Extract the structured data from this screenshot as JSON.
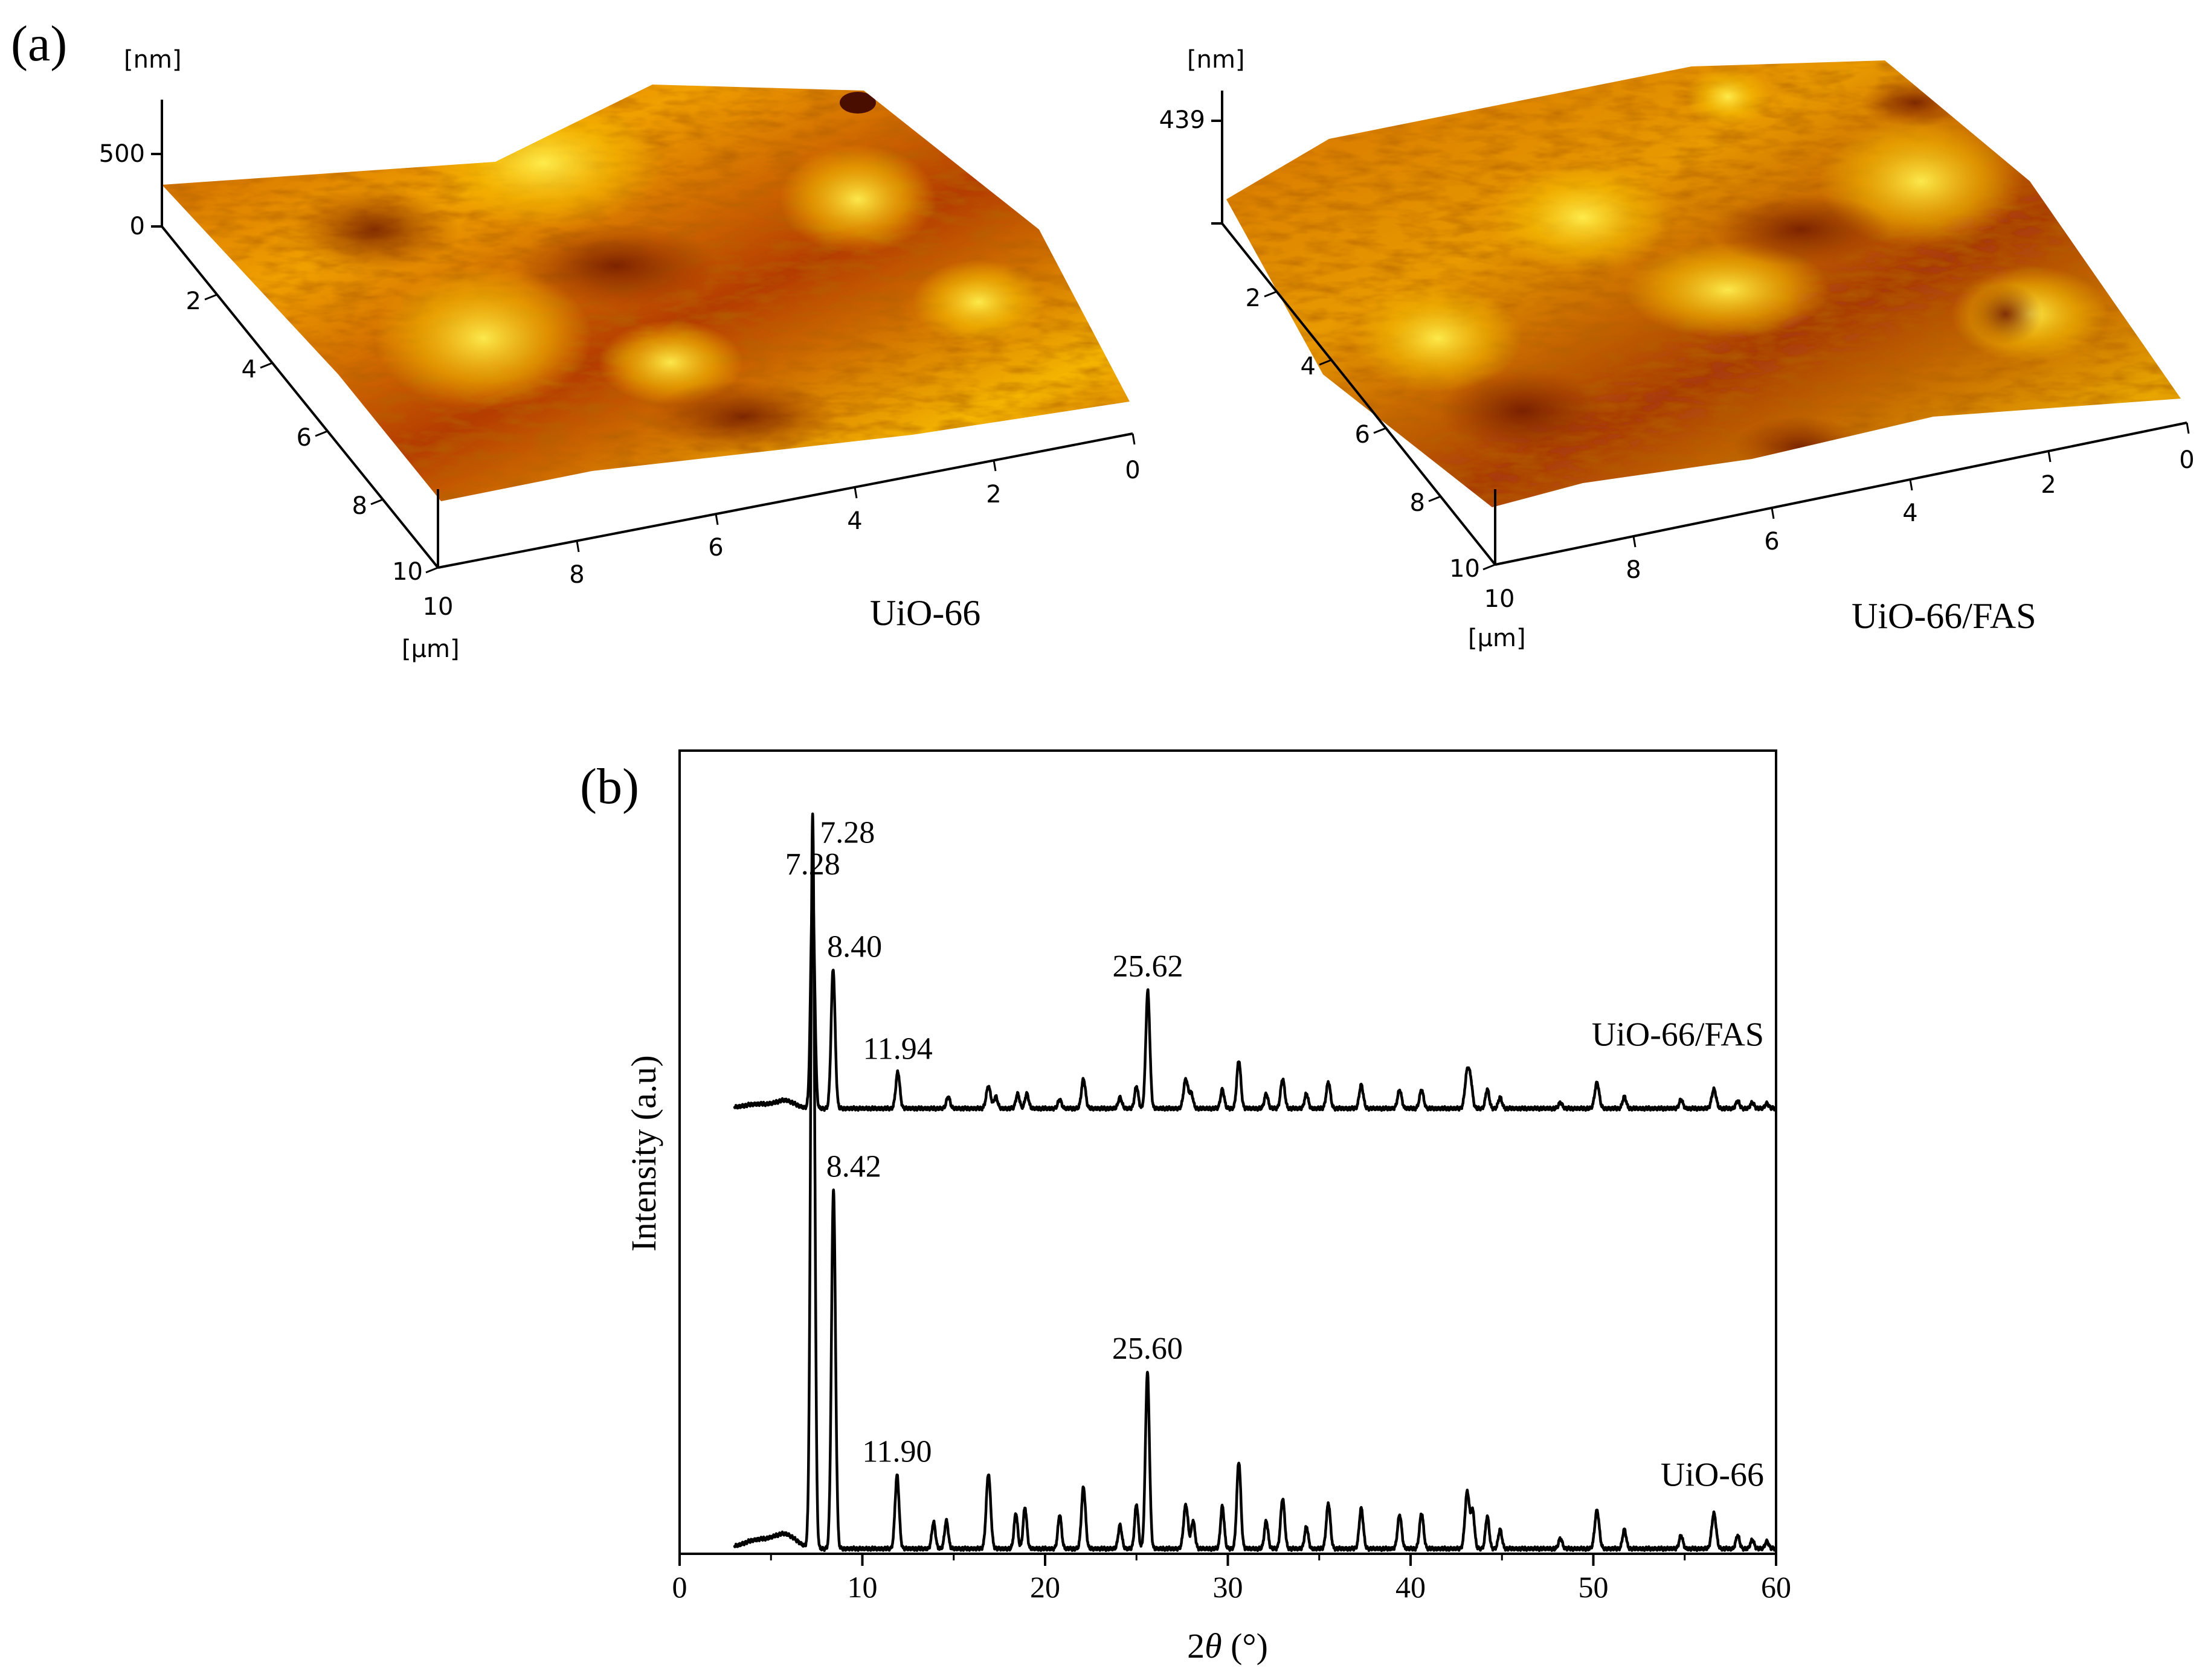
{
  "panel_a": {
    "label": "(a)",
    "left": {
      "sample": "UiO-66",
      "z_unit": "[nm]",
      "z_ticks": [
        "500",
        "0"
      ],
      "xy_unit": "[μm]",
      "side_ticks": [
        "2",
        "4",
        "6",
        "8",
        "10"
      ],
      "front_ticks": [
        "10",
        "8",
        "6",
        "4",
        "2",
        "0"
      ]
    },
    "right": {
      "sample": "UiO-66/FAS",
      "z_unit": "[nm]",
      "z_ticks": [
        "439"
      ],
      "xy_unit": "[μm]",
      "side_ticks": [
        "2",
        "4",
        "6",
        "8",
        "10"
      ],
      "front_ticks": [
        "10",
        "8",
        "6",
        "4",
        "2",
        "0"
      ]
    },
    "colors": {
      "dark": "#7a1e00",
      "mid": "#d86a00",
      "light": "#f4b400",
      "bright": "#ffe640"
    }
  },
  "chart_data": {
    "type": "line",
    "panel_label": "(b)",
    "xlabel_pre": "2",
    "xlabel_theta": "θ",
    "xlabel_post": " (°)",
    "ylabel": "Intensity (a.u)",
    "xlim": [
      0,
      60
    ],
    "ylim": [
      0,
      100
    ],
    "xticks": [
      0,
      10,
      20,
      30,
      40,
      50,
      60
    ],
    "line_color": "#000000",
    "series": [
      {
        "name": "UiO-66/FAS",
        "baseline": 60,
        "peaks": [
          [
            4.3,
            0.6,
            0.8
          ],
          [
            5.8,
            1.0,
            0.5
          ],
          [
            7.28,
            30.0,
            0.11
          ],
          [
            8.4,
            19.0,
            0.11
          ],
          [
            11.94,
            5.0,
            0.11
          ],
          [
            14.7,
            1.6,
            0.1
          ],
          [
            16.9,
            3.0,
            0.12
          ],
          [
            17.3,
            1.6,
            0.1
          ],
          [
            18.5,
            2.0,
            0.1
          ],
          [
            19.0,
            2.0,
            0.1
          ],
          [
            20.8,
            1.2,
            0.1
          ],
          [
            22.1,
            4.0,
            0.11
          ],
          [
            24.1,
            1.5,
            0.1
          ],
          [
            25.0,
            3.0,
            0.1
          ],
          [
            25.62,
            16.0,
            0.11
          ],
          [
            27.7,
            4.0,
            0.12
          ],
          [
            28.0,
            2.0,
            0.1
          ],
          [
            29.7,
            2.6,
            0.1
          ],
          [
            30.6,
            6.5,
            0.11
          ],
          [
            32.1,
            2.0,
            0.1
          ],
          [
            33.0,
            4.0,
            0.11
          ],
          [
            34.3,
            2.0,
            0.1
          ],
          [
            35.5,
            3.6,
            0.11
          ],
          [
            37.3,
            3.2,
            0.11
          ],
          [
            39.4,
            2.5,
            0.11
          ],
          [
            40.6,
            2.5,
            0.11
          ],
          [
            43.1,
            5.0,
            0.12
          ],
          [
            43.3,
            3.0,
            0.1
          ],
          [
            44.2,
            2.6,
            0.1
          ],
          [
            44.9,
            1.5,
            0.1
          ],
          [
            48.2,
            0.8,
            0.1
          ],
          [
            50.2,
            3.5,
            0.12
          ],
          [
            51.7,
            1.6,
            0.1
          ],
          [
            54.8,
            1.2,
            0.1
          ],
          [
            56.6,
            2.6,
            0.12
          ],
          [
            57.9,
            1.0,
            0.1
          ],
          [
            58.7,
            0.8,
            0.1
          ],
          [
            59.5,
            0.7,
            0.1
          ]
        ],
        "labels": [
          {
            "x": 7.28,
            "text": "7.28"
          },
          {
            "x": 8.4,
            "text": "8.40"
          },
          {
            "x": 11.94,
            "text": "11.94"
          },
          {
            "x": 25.62,
            "text": "25.62"
          }
        ]
      },
      {
        "name": "UiO-66",
        "baseline": 0,
        "peaks": [
          [
            4.3,
            1.2,
            0.8
          ],
          [
            5.8,
            1.8,
            0.6
          ],
          [
            7.28,
            100.0,
            0.11
          ],
          [
            8.42,
            49.0,
            0.11
          ],
          [
            11.9,
            10.0,
            0.11
          ],
          [
            13.9,
            3.6,
            0.1
          ],
          [
            14.6,
            3.8,
            0.1
          ],
          [
            16.9,
            10.2,
            0.12
          ],
          [
            18.4,
            4.8,
            0.1
          ],
          [
            18.9,
            5.6,
            0.1
          ],
          [
            20.8,
            4.6,
            0.1
          ],
          [
            22.1,
            8.4,
            0.11
          ],
          [
            24.1,
            3.2,
            0.1
          ],
          [
            25.0,
            6.0,
            0.1
          ],
          [
            25.6,
            24.0,
            0.11
          ],
          [
            27.7,
            6.0,
            0.12
          ],
          [
            28.1,
            3.8,
            0.1
          ],
          [
            29.7,
            5.8,
            0.1
          ],
          [
            30.6,
            11.8,
            0.11
          ],
          [
            32.1,
            3.8,
            0.1
          ],
          [
            33.0,
            6.8,
            0.11
          ],
          [
            34.3,
            3.0,
            0.1
          ],
          [
            35.5,
            6.2,
            0.11
          ],
          [
            37.3,
            5.5,
            0.11
          ],
          [
            39.4,
            4.6,
            0.11
          ],
          [
            40.6,
            4.8,
            0.11
          ],
          [
            43.1,
            7.8,
            0.12
          ],
          [
            43.4,
            5.0,
            0.1
          ],
          [
            44.2,
            4.4,
            0.1
          ],
          [
            44.9,
            2.6,
            0.1
          ],
          [
            48.2,
            1.4,
            0.1
          ],
          [
            50.2,
            5.2,
            0.12
          ],
          [
            51.7,
            2.6,
            0.1
          ],
          [
            54.8,
            1.8,
            0.1
          ],
          [
            56.6,
            4.8,
            0.12
          ],
          [
            57.9,
            1.8,
            0.1
          ],
          [
            58.7,
            1.2,
            0.1
          ],
          [
            59.5,
            1.0,
            0.1
          ]
        ],
        "labels": [
          {
            "x": 7.28,
            "text": "7.28"
          },
          {
            "x": 8.42,
            "text": "8.42"
          },
          {
            "x": 11.9,
            "text": "11.90"
          },
          {
            "x": 25.6,
            "text": "25.60"
          }
        ]
      }
    ]
  }
}
